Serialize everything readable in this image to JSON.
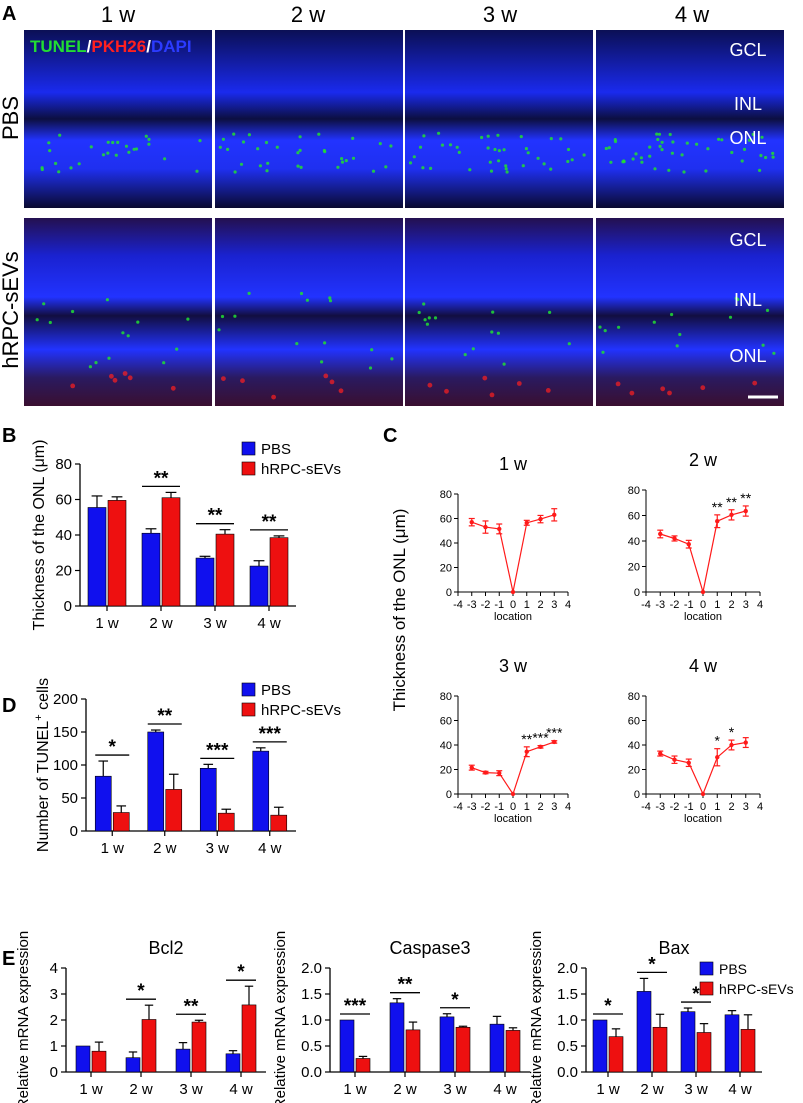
{
  "panel_labels": {
    "a": "A",
    "b": "B",
    "c": "C",
    "d": "D",
    "e": "E"
  },
  "panelA": {
    "weeks": [
      "1 w",
      "2 w",
      "3 w",
      "4 w"
    ],
    "rows": [
      "PBS",
      "hRPC-sEVs"
    ],
    "stain": {
      "tunel": "TUNEL",
      "sep1": "/",
      "pkh26": "PKH26",
      "sep2": "/",
      "dapi": "DAPI"
    },
    "layers": [
      "GCL",
      "INL",
      "ONL"
    ],
    "colors": {
      "tunel": "#22dd33",
      "pkh26": "#ff2020",
      "dapi": "#2b3bff"
    }
  },
  "colors": {
    "pbs": "#1010ee",
    "sevs": "#ee1010",
    "line": "#ff1a1a"
  },
  "chart_data": [
    {
      "id": "B",
      "type": "bar",
      "categories": [
        "1 w",
        "2 w",
        "3 w",
        "4 w"
      ],
      "series": [
        {
          "name": "PBS",
          "values": [
            55.5,
            41,
            27,
            22.5
          ],
          "errors": [
            6.5,
            2.5,
            1,
            3
          ]
        },
        {
          "name": "hRPC-sEVs",
          "values": [
            59.5,
            61,
            40.5,
            38.5
          ],
          "errors": [
            2,
            3,
            2.5,
            1
          ]
        }
      ],
      "ylabel": "Thickness of the ONL (μm)",
      "ylim": [
        0,
        80
      ],
      "yticks": [
        0,
        20,
        40,
        60,
        80
      ],
      "sig": [
        "",
        "**",
        "**",
        "**"
      ],
      "legend": "top-right"
    },
    {
      "id": "C",
      "type": "line",
      "ylabel": "Thickness of the ONL (μm)",
      "xlabel": "location",
      "x": [
        -3,
        -2,
        -1,
        0,
        1,
        2,
        3
      ],
      "xticks": [
        -4,
        -3,
        -2,
        -1,
        0,
        1,
        2,
        3,
        4
      ],
      "xlim": [
        -4,
        4
      ],
      "ylim": [
        0,
        80
      ],
      "yticks": [
        0,
        20,
        40,
        60,
        80
      ],
      "subplots": [
        {
          "title": "1 w",
          "values": [
            57,
            53,
            51.5,
            0,
            56.5,
            59.5,
            63
          ],
          "errors": [
            3,
            5,
            4,
            0,
            2,
            3,
            5
          ],
          "sig": [
            "",
            "",
            "",
            "",
            "",
            "",
            ""
          ]
        },
        {
          "title": "2 w",
          "values": [
            45.5,
            42,
            37.5,
            0,
            55.5,
            60.5,
            63.5
          ],
          "errors": [
            3,
            2,
            3,
            0,
            5,
            4,
            4
          ],
          "sig": [
            "",
            "",
            "",
            "",
            "**",
            "**",
            "**"
          ]
        },
        {
          "title": "3 w",
          "values": [
            21.5,
            17.5,
            17,
            0,
            34.5,
            38.5,
            42.5
          ],
          "errors": [
            2,
            1,
            2,
            0,
            4,
            1,
            1
          ],
          "sig": [
            "",
            "",
            "",
            "",
            "**",
            "***",
            "***"
          ]
        },
        {
          "title": "4 w",
          "values": [
            33,
            28,
            25.5,
            0,
            30,
            40,
            42
          ],
          "errors": [
            2,
            3,
            3,
            0,
            7,
            4,
            4
          ],
          "sig": [
            "",
            "",
            "",
            "",
            "*",
            "*",
            ""
          ]
        }
      ]
    },
    {
      "id": "D",
      "type": "bar",
      "categories": [
        "1 w",
        "2 w",
        "3 w",
        "4 w"
      ],
      "series": [
        {
          "name": "PBS",
          "values": [
            83,
            150,
            95,
            121
          ],
          "errors": [
            23,
            3,
            6,
            5
          ]
        },
        {
          "name": "hRPC-sEVs",
          "values": [
            28,
            63,
            27,
            24
          ],
          "errors": [
            10,
            23,
            6,
            12
          ]
        }
      ],
      "ylabel_main": "Number of TUNEL",
      "ylabel_sup": "+",
      "ylabel_tail": " cells",
      "ylim": [
        0,
        200
      ],
      "yticks": [
        0,
        50,
        100,
        150,
        200
      ],
      "sig": [
        "*",
        "**",
        "***",
        "***"
      ],
      "legend": "top-right"
    },
    {
      "id": "E1",
      "type": "bar",
      "title": "Bcl2",
      "categories": [
        "1 w",
        "2 w",
        "3 w",
        "4 w"
      ],
      "series": [
        {
          "name": "PBS",
          "values": [
            1,
            0.55,
            0.88,
            0.7
          ],
          "errors": [
            0,
            0.22,
            0.25,
            0.12
          ]
        },
        {
          "name": "hRPC-sEVs",
          "values": [
            0.8,
            2.02,
            1.92,
            2.58
          ],
          "errors": [
            0.35,
            0.55,
            0.07,
            0.72
          ]
        }
      ],
      "ylabel": "Relative mRNA expression",
      "ylim": [
        0,
        4
      ],
      "yticks": [
        "0",
        "1",
        "2",
        "3",
        "4"
      ],
      "sig": [
        "",
        "*",
        "**",
        "*"
      ]
    },
    {
      "id": "E2",
      "type": "bar",
      "title": "Caspase3",
      "categories": [
        "1 w",
        "2 w",
        "3 w",
        "4 w"
      ],
      "series": [
        {
          "name": "PBS",
          "values": [
            1,
            1.33,
            1.06,
            0.92
          ],
          "errors": [
            0,
            0.08,
            0.06,
            0.15
          ]
        },
        {
          "name": "hRPC-sEVs",
          "values": [
            0.26,
            0.81,
            0.86,
            0.8
          ],
          "errors": [
            0.04,
            0.15,
            0.02,
            0.05
          ]
        }
      ],
      "ylabel": "Relative mRNA expression",
      "ylim": [
        0,
        2
      ],
      "yticks": [
        "0.0",
        "0.5",
        "1.0",
        "1.5",
        "2.0"
      ],
      "sig": [
        "***",
        "**",
        "*",
        ""
      ]
    },
    {
      "id": "E3",
      "type": "bar",
      "title": "Bax",
      "categories": [
        "1 w",
        "2 w",
        "3 w",
        "4 w"
      ],
      "series": [
        {
          "name": "PBS",
          "values": [
            1,
            1.55,
            1.16,
            1.1
          ],
          "errors": [
            0,
            0.25,
            0.07,
            0.08
          ]
        },
        {
          "name": "hRPC-sEVs",
          "values": [
            0.68,
            0.86,
            0.76,
            0.82
          ],
          "errors": [
            0.15,
            0.25,
            0.17,
            0.28
          ]
        }
      ],
      "ylabel": "Relative mRNA expression",
      "ylim": [
        0,
        2
      ],
      "yticks": [
        "0.0",
        "0.5",
        "1.0",
        "1.5",
        "2.0"
      ],
      "sig": [
        "*",
        "*",
        "*",
        ""
      ],
      "legend": "top-right"
    }
  ]
}
